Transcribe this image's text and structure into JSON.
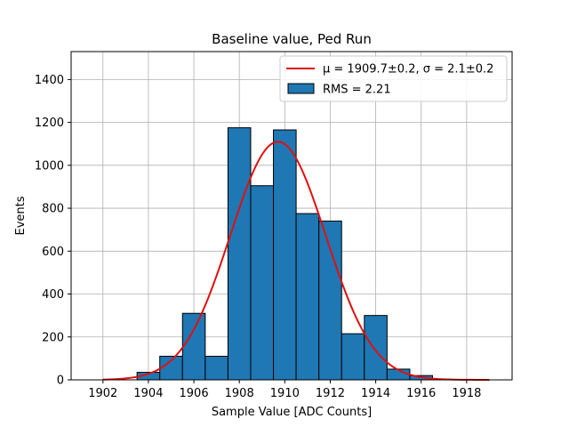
{
  "chart_data": {
    "type": "bar",
    "title": "Baseline value, Ped Run",
    "xlabel": "Sample Value [ADC Counts]",
    "ylabel": "Events",
    "xlim": [
      1900.6,
      1920.0
    ],
    "ylim": [
      0,
      1530
    ],
    "xticks": [
      1902,
      1904,
      1906,
      1908,
      1910,
      1912,
      1914,
      1916,
      1918
    ],
    "yticks": [
      0,
      200,
      400,
      600,
      800,
      1000,
      1200,
      1400
    ],
    "grid": true,
    "legend_position": "top-right",
    "bin_edges": [
      1903.5,
      1904.5,
      1905.5,
      1906.5,
      1907.5,
      1908.5,
      1909.5,
      1910.5,
      1911.5,
      1912.5,
      1913.5,
      1914.5,
      1915.5,
      1916.5
    ],
    "values": [
      35,
      110,
      310,
      110,
      1175,
      905,
      1165,
      775,
      740,
      215,
      300,
      50,
      20
    ],
    "bar_color": "#1f77b4",
    "fit": {
      "mu": 1909.7,
      "sigma": 2.1,
      "amplitude": 1110,
      "x_range": [
        1902.0,
        1919.0
      ],
      "color": "#e01010"
    },
    "legend": {
      "fit_label": "μ = 1909.7±0.2, σ = 2.1±0.2",
      "hist_label": "RMS = 2.21"
    }
  }
}
